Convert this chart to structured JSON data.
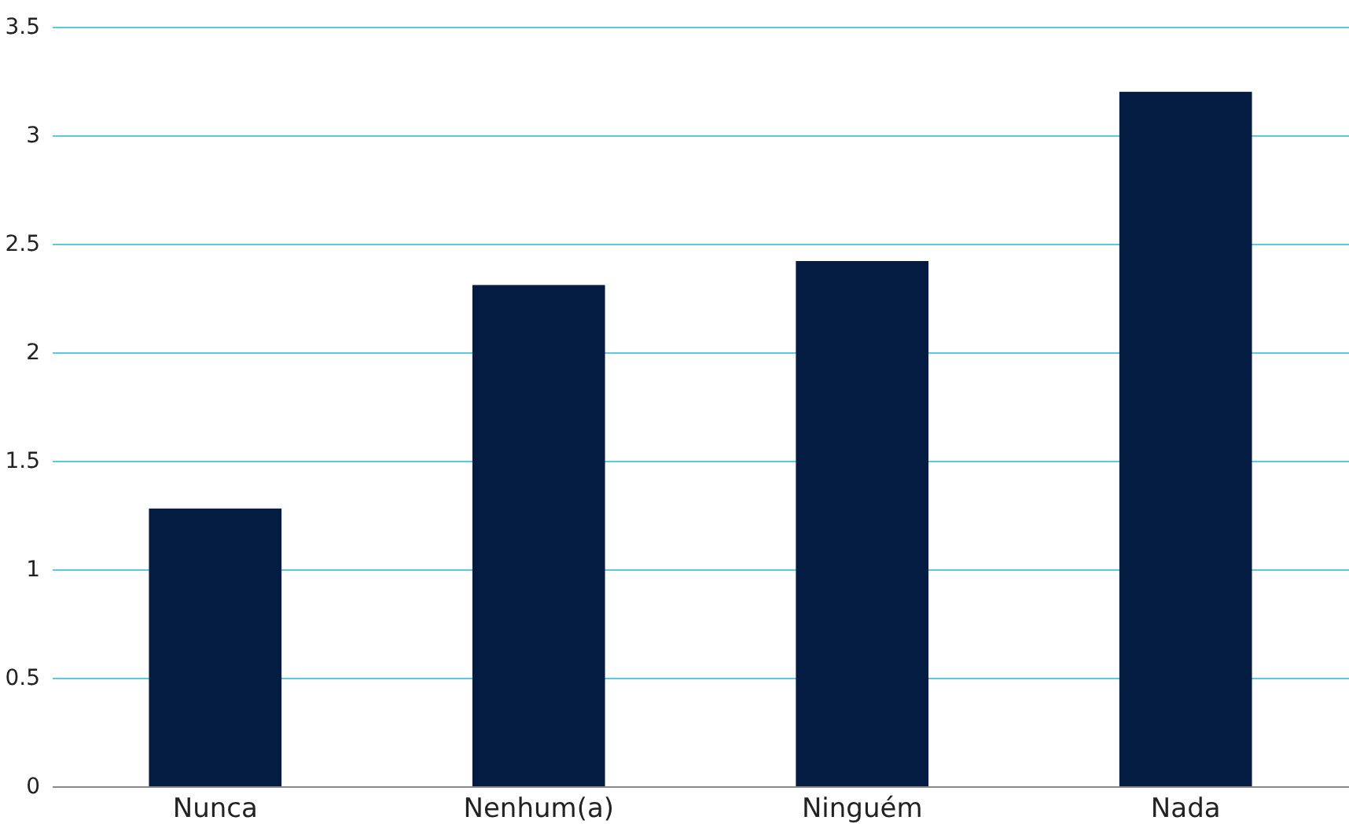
{
  "chart_data": {
    "type": "bar",
    "categories": [
      "Nunca",
      "Nenhum(a)",
      "Ninguém",
      "Nada"
    ],
    "values": [
      1.28,
      2.31,
      2.42,
      3.2
    ],
    "color": "#041c42",
    "ylim": [
      0,
      3.5
    ],
    "yticks": [
      0,
      0.5,
      1,
      1.5,
      2,
      2.5,
      3,
      3.5
    ],
    "grid": "y"
  }
}
